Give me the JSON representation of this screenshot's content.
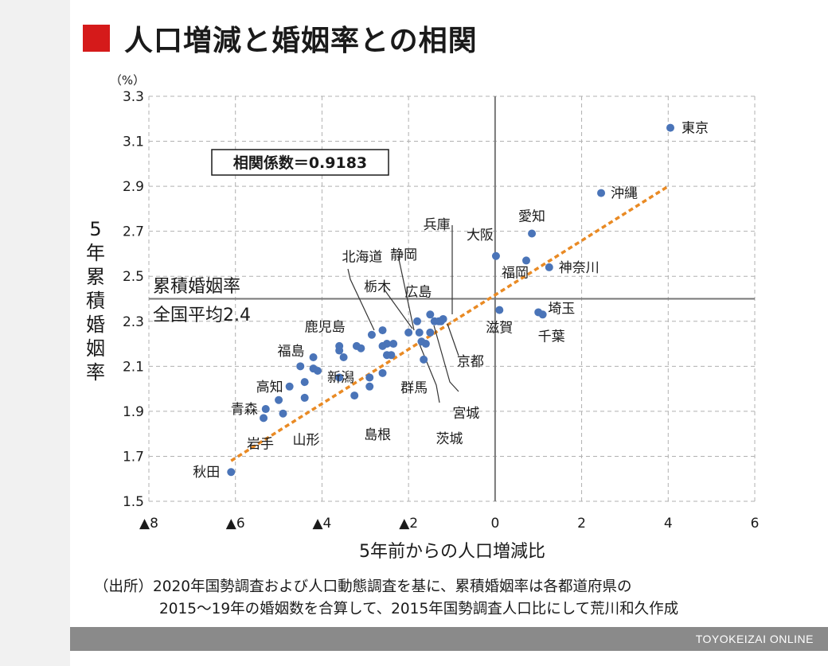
{
  "title": "人口増減と婚姻率との相関",
  "source": {
    "line1": "（出所）2020年国勢調査および人口動態調査を基に、累積婚姻率は各都道府県の",
    "line2": "2015～19年の婚姻数を合算して、2015年国勢調査人口比にして荒川和久作成"
  },
  "footer": "TOYOKEIZAI ONLINE",
  "chart_data": {
    "type": "scatter",
    "title": "人口増減と婚姻率との相関",
    "xlabel": "5年前からの人口増減比",
    "ylabel": "5年累積婚姻率",
    "yunit": "（%）",
    "xlim": [
      -8,
      6
    ],
    "ylim": [
      1.5,
      3.3
    ],
    "xticks": [
      -8,
      -6,
      -4,
      -2,
      0,
      2,
      4,
      6
    ],
    "xtick_labels": [
      "▲8",
      "▲6",
      "▲4",
      "▲2",
      "0",
      "2",
      "4",
      "6"
    ],
    "yticks": [
      1.5,
      1.7,
      1.9,
      2.1,
      2.3,
      2.5,
      2.7,
      2.9,
      3.1,
      3.3
    ],
    "ytick_labels": [
      "1.5",
      "1.7",
      "1.9",
      "2.1",
      "2.3",
      "2.5",
      "2.7",
      "2.9",
      "3.1",
      "3.3"
    ],
    "grid": true,
    "dot_color": "#4a74b8",
    "trend_color": "#e98a24",
    "ref_line_color": "#777777",
    "correlation": "相関係数＝0.9183",
    "average_label": [
      "累積婚姻率",
      "全国平均2.4"
    ],
    "average_y": 2.4,
    "trend_line": {
      "x": [
        -6.1,
        4.0
      ],
      "y": [
        1.68,
        2.9
      ]
    },
    "labeled_points": [
      {
        "name": "東京",
        "x": 4.05,
        "y": 3.16
      },
      {
        "name": "沖縄",
        "x": 2.45,
        "y": 2.87
      },
      {
        "name": "愛知",
        "x": 0.85,
        "y": 2.69
      },
      {
        "name": "神奈川",
        "x": 1.25,
        "y": 2.54
      },
      {
        "name": "福岡",
        "x": 0.72,
        "y": 2.57
      },
      {
        "name": "大阪",
        "x": 0.02,
        "y": 2.59
      },
      {
        "name": "兵庫",
        "x": -1.2,
        "y": 2.31
      },
      {
        "name": "埼玉",
        "x": 1.0,
        "y": 2.34
      },
      {
        "name": "千葉",
        "x": 1.1,
        "y": 2.33
      },
      {
        "name": "滋賀",
        "x": 0.1,
        "y": 2.35
      },
      {
        "name": "広島",
        "x": -1.5,
        "y": 2.33
      },
      {
        "name": "京都",
        "x": -1.25,
        "y": 2.3
      },
      {
        "name": "宮城",
        "x": -1.5,
        "y": 2.25
      },
      {
        "name": "茨城",
        "x": -1.7,
        "y": 2.21
      },
      {
        "name": "群馬",
        "x": -1.65,
        "y": 2.13
      },
      {
        "name": "静岡",
        "x": -2.0,
        "y": 2.25
      },
      {
        "name": "栃木",
        "x": -2.35,
        "y": 2.2
      },
      {
        "name": "北海道",
        "x": -2.85,
        "y": 2.24
      },
      {
        "name": "鹿児島",
        "x": -3.6,
        "y": 2.17
      },
      {
        "name": "福島",
        "x": -4.2,
        "y": 2.14
      },
      {
        "name": "新潟",
        "x": -4.1,
        "y": 2.08
      },
      {
        "name": "島根",
        "x": -3.25,
        "y": 1.97
      },
      {
        "name": "高知",
        "x": -4.75,
        "y": 2.01
      },
      {
        "name": "青森",
        "x": -5.3,
        "y": 1.91
      },
      {
        "name": "山形",
        "x": -4.9,
        "y": 1.89
      },
      {
        "name": "岩手",
        "x": -5.35,
        "y": 1.87
      },
      {
        "name": "秋田",
        "x": -6.1,
        "y": 1.63
      }
    ],
    "other_points": [
      {
        "x": -1.4,
        "y": 2.3
      },
      {
        "x": -1.3,
        "y": 2.3
      },
      {
        "x": -1.8,
        "y": 2.3
      },
      {
        "x": -1.75,
        "y": 2.25
      },
      {
        "x": -1.6,
        "y": 2.2
      },
      {
        "x": -2.6,
        "y": 2.26
      },
      {
        "x": -2.5,
        "y": 2.2
      },
      {
        "x": -2.6,
        "y": 2.19
      },
      {
        "x": -3.1,
        "y": 2.18
      },
      {
        "x": -3.2,
        "y": 2.19
      },
      {
        "x": -2.4,
        "y": 2.15
      },
      {
        "x": -2.5,
        "y": 2.15
      },
      {
        "x": -3.6,
        "y": 2.19
      },
      {
        "x": -3.5,
        "y": 2.14
      },
      {
        "x": -4.2,
        "y": 2.09
      },
      {
        "x": -4.5,
        "y": 2.1
      },
      {
        "x": -4.4,
        "y": 2.03
      },
      {
        "x": -3.6,
        "y": 2.05
      },
      {
        "x": -2.9,
        "y": 2.05
      },
      {
        "x": -2.6,
        "y": 2.07
      },
      {
        "x": -2.9,
        "y": 2.01
      },
      {
        "x": -4.4,
        "y": 1.96
      },
      {
        "x": -5.0,
        "y": 1.95
      }
    ]
  }
}
